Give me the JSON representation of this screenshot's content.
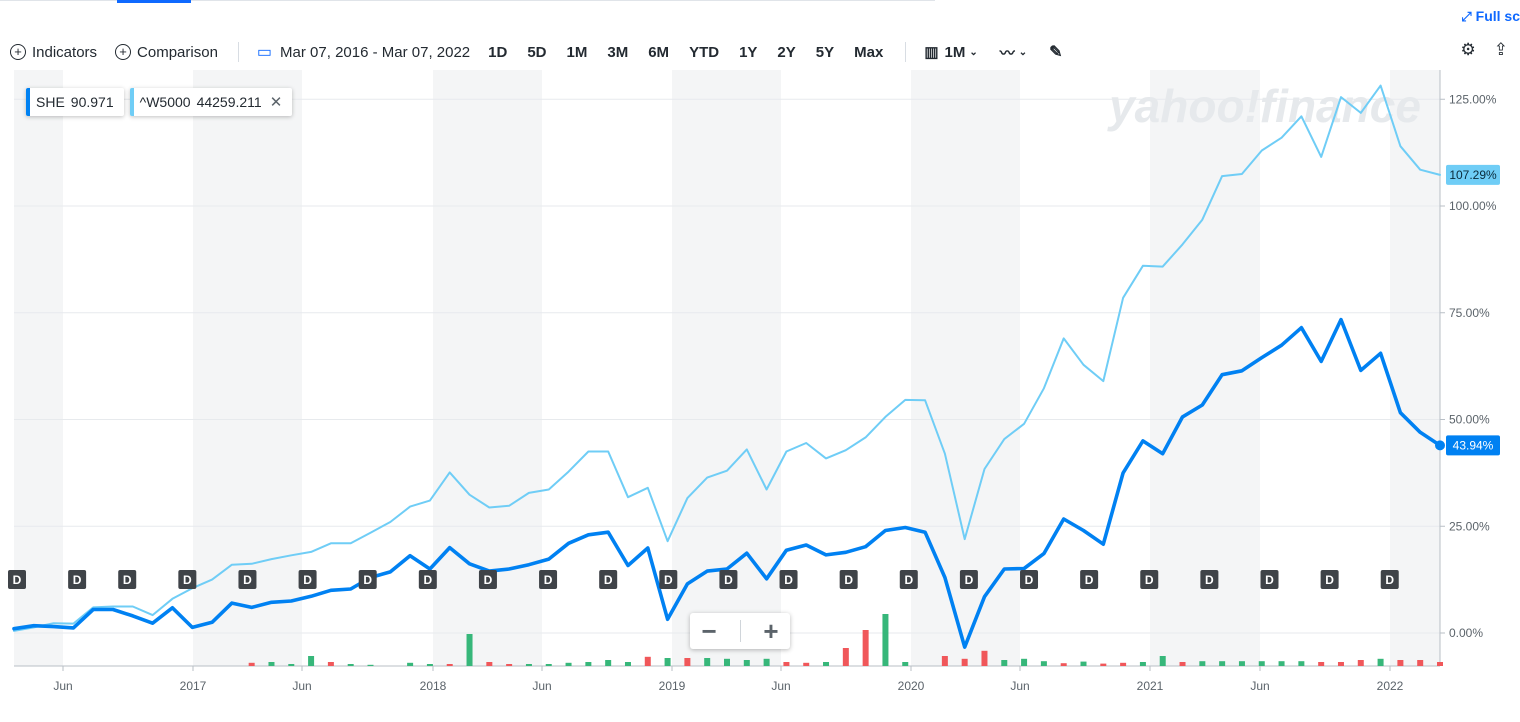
{
  "header": {
    "fullscreen_label": "Full sc",
    "fullscreen_icon": "expand-icon"
  },
  "toolbar": {
    "indicators_label": "Indicators",
    "comparison_label": "Comparison",
    "date_range": "Mar 07, 2016 - Mar 07, 2022",
    "periods": [
      "1D",
      "5D",
      "1M",
      "3M",
      "6M",
      "YTD",
      "1Y",
      "2Y",
      "5Y",
      "Max"
    ],
    "interval_label": "1M",
    "settings_icon": "gear-icon",
    "share_icon": "share-icon"
  },
  "legend": [
    {
      "symbol": "SHE",
      "value": "90.971",
      "color": "#0081f2"
    },
    {
      "symbol": "^W5000",
      "value": "44259.211",
      "color": "#6fcdf6"
    }
  ],
  "watermark": "yahoo!finance",
  "chart_data": {
    "type": "line",
    "y_axis": {
      "ticks": [
        "125.00%",
        "100.00%",
        "75.00%",
        "50.00%",
        "25.00%",
        "0.00%"
      ],
      "range": [
        -7,
        131
      ]
    },
    "x_axis": {
      "ticks": [
        "Jun",
        "2017",
        "Jun",
        "2018",
        "Jun",
        "2019",
        "Jun",
        "2020",
        "Jun",
        "2021",
        "Jun",
        "2022"
      ]
    },
    "last_labels": [
      {
        "series": "^W5000",
        "value": "107.29%"
      },
      {
        "series": "SHE",
        "value": "43.94%"
      }
    ],
    "series": [
      {
        "name": "SHE",
        "color": "#0081f2",
        "values": [
          1,
          1.7,
          1.5,
          1.2,
          5.5,
          5.5,
          4,
          2.3,
          5.9,
          1.3,
          2.5,
          7,
          6,
          7.2,
          7.5,
          8.6,
          10,
          10.3,
          13,
          14.3,
          18.1,
          15,
          20,
          16.2,
          14.5,
          15,
          16,
          17.3,
          21,
          23,
          23.6,
          15.8,
          19.9,
          3.2,
          11.5,
          14.5,
          15,
          18.7,
          12.7,
          19.4,
          20.6,
          18.3,
          18.9,
          20.2,
          24,
          24.7,
          23.6,
          13,
          -3.3,
          8.5,
          15,
          15.1,
          18.6,
          26.7,
          24,
          20.8,
          37.5,
          45,
          42,
          50.6,
          53.4,
          60.5,
          61.4,
          64.5,
          67.4,
          71.5,
          63.6,
          73.4,
          61.5,
          65.5,
          51.6,
          47,
          43.94
        ]
      },
      {
        "name": "^W5000",
        "color": "#6fcdf6",
        "values": [
          0.5,
          1.3,
          2.3,
          2.2,
          6,
          6.2,
          6.2,
          4.2,
          8,
          10.5,
          12.5,
          16,
          16.2,
          17.3,
          18.2,
          19,
          21,
          21,
          23.5,
          26,
          29.6,
          31,
          37.6,
          32.4,
          29.4,
          29.8,
          32.8,
          33.6,
          37.8,
          42.5,
          42.5,
          31.8,
          34,
          21.5,
          31.6,
          36.4,
          38,
          43,
          33.6,
          42.5,
          44.5,
          40.9,
          42.8,
          45.8,
          50.6,
          54.6,
          54.5,
          42,
          22,
          38.4,
          45.4,
          49,
          57.3,
          69,
          62.8,
          59,
          78.5,
          86,
          85.8,
          91,
          96.8,
          107,
          107.5,
          113,
          116,
          121,
          111.5,
          125.5,
          121.8,
          128.2,
          114,
          108.5,
          107.29
        ]
      }
    ],
    "volume": {
      "values": [
        0,
        0,
        0,
        0,
        0,
        0,
        0,
        0,
        0,
        0,
        0,
        0,
        -0.8,
        1,
        0.5,
        2.5,
        -1,
        0.5,
        0.3,
        0,
        0.8,
        0.5,
        -0.5,
        8,
        -1,
        -0.5,
        0.5,
        0.5,
        0.8,
        1,
        1.5,
        1,
        -2.3,
        2,
        -2,
        2,
        1.8,
        1.5,
        1.8,
        -1,
        -0.8,
        1,
        -4.5,
        -9,
        13,
        1,
        0,
        -2.5,
        -1.8,
        -3.8,
        1.5,
        1.8,
        1.2,
        -0.7,
        1.1,
        -0.6,
        -0.8,
        1,
        2.5,
        -1,
        1.2,
        1.2,
        1.2,
        1.2,
        1.2,
        1.2,
        -1,
        -1,
        -1.5,
        1.8,
        -1.5,
        -1.5,
        -1
      ],
      "up_color": "#37b77a",
      "down_color": "#f0575a"
    },
    "dividends": {
      "label": "D",
      "indices": [
        0,
        6,
        11,
        17,
        23,
        29,
        35,
        41,
        47,
        53,
        59,
        65,
        71,
        77,
        83,
        89,
        95,
        101,
        107,
        113,
        119,
        125,
        131,
        137,
        143,
        149,
        155,
        161,
        167,
        173,
        185,
        191
      ]
    }
  }
}
